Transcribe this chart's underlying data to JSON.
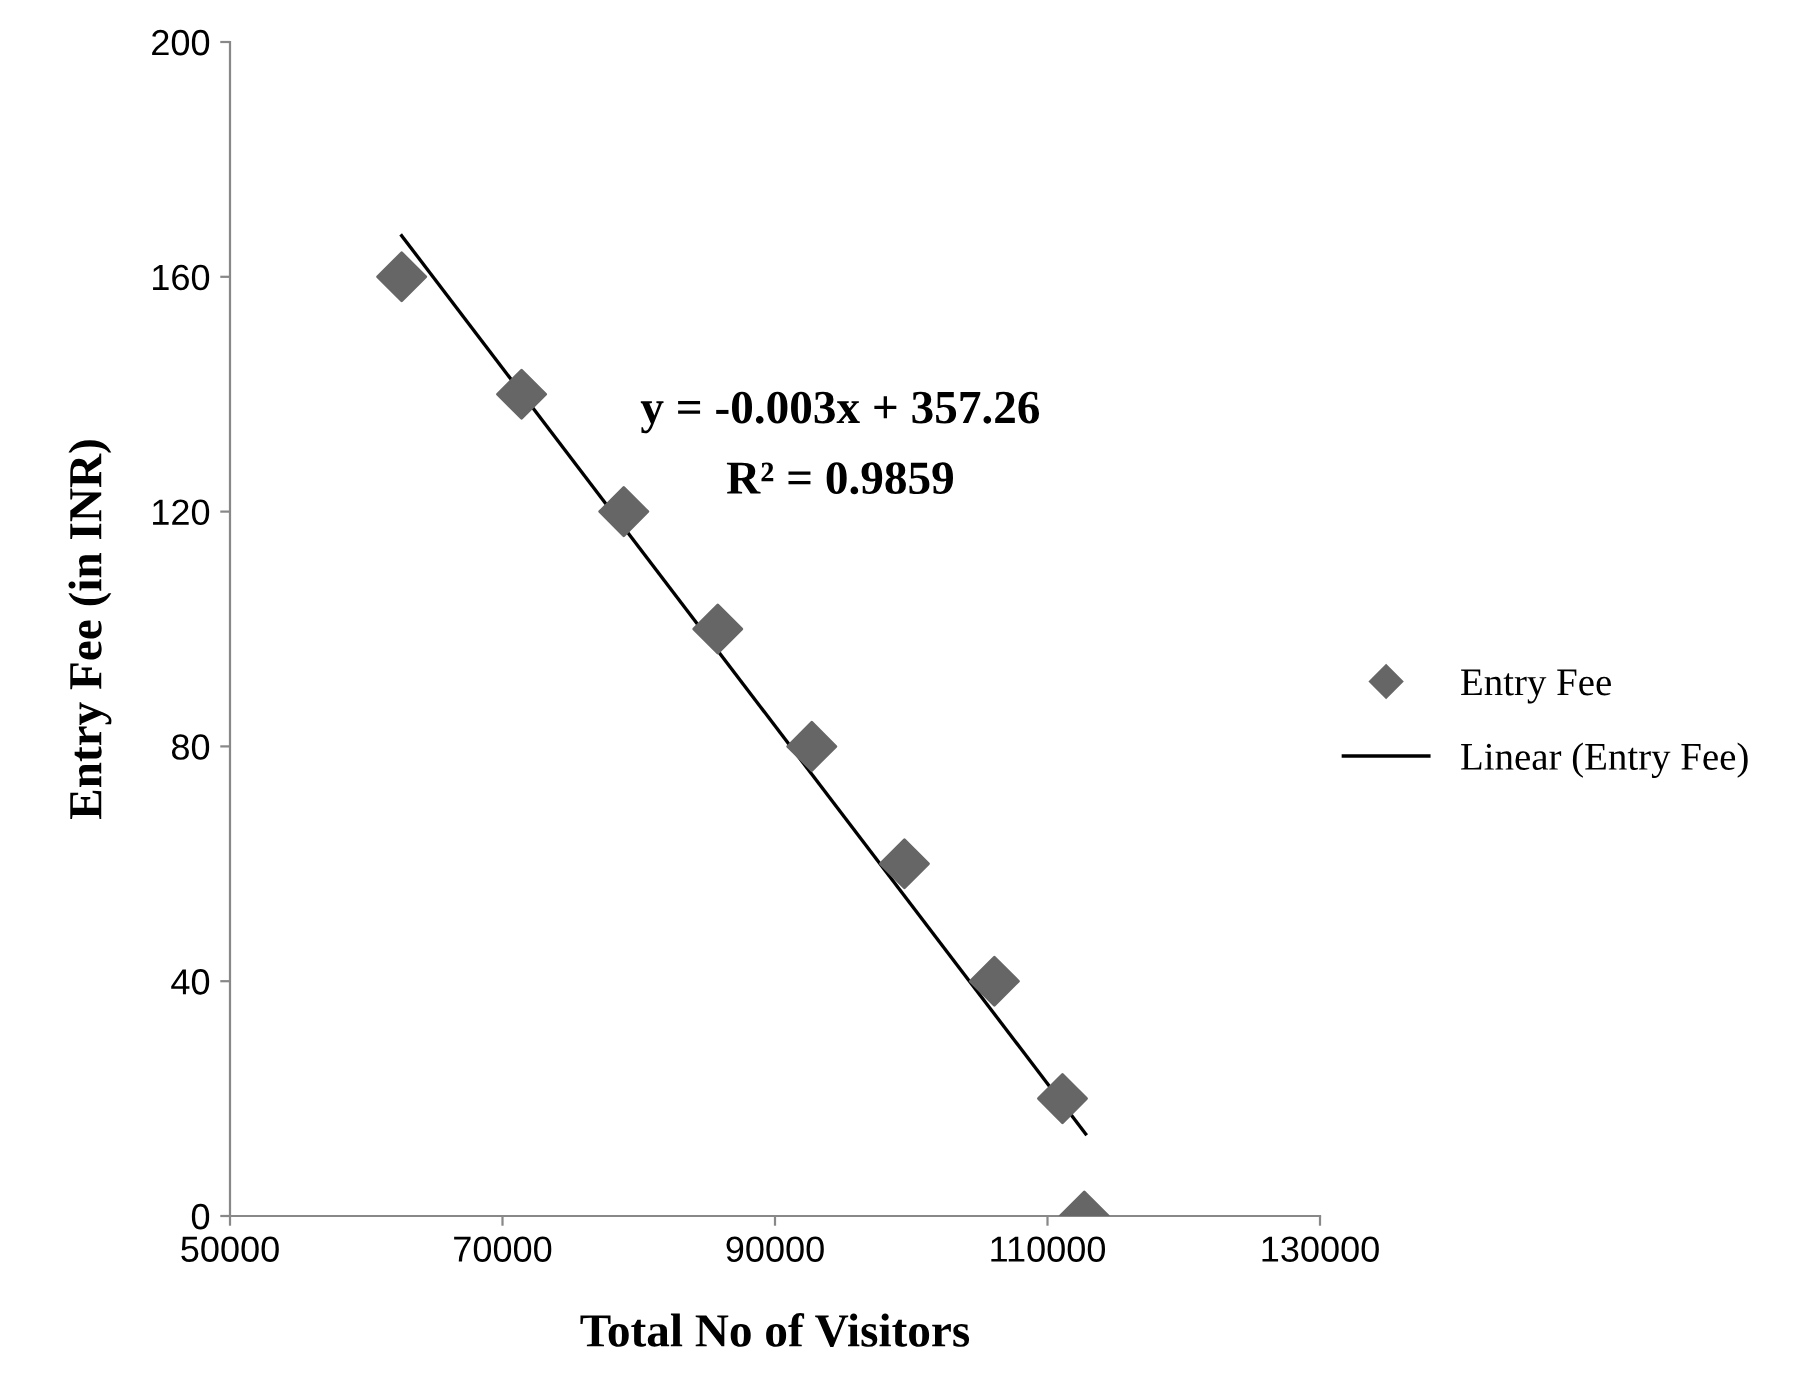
{
  "chart_data": {
    "type": "scatter",
    "xlabel": "Total No of Visitors",
    "ylabel": "Entry Fee (in INR)",
    "series": [
      {
        "name": "Entry Fee",
        "color": "#666666",
        "marker": "diamond",
        "x": [
          62600,
          71400,
          78900,
          85800,
          92700,
          99500,
          106100,
          111100,
          112700
        ],
        "values": [
          160,
          140,
          120,
          100,
          80,
          60,
          40,
          20,
          0
        ]
      },
      {
        "name": "Linear (Entry Fee)",
        "type": "line",
        "color": "#000000",
        "line_style": "solid",
        "x": [
          62600,
          112800
        ],
        "values": [
          167,
          14
        ]
      }
    ],
    "annotations": [
      "y = -0.003x + 357.26",
      "R² = 0.9859"
    ],
    "xlim": [
      50000,
      130000
    ],
    "xticks": [
      50000,
      70000,
      90000,
      110000,
      130000
    ],
    "ylim": [
      0,
      200
    ],
    "yticks": [
      0,
      40,
      80,
      120,
      160,
      200
    ],
    "grid": false,
    "legend": "right"
  }
}
